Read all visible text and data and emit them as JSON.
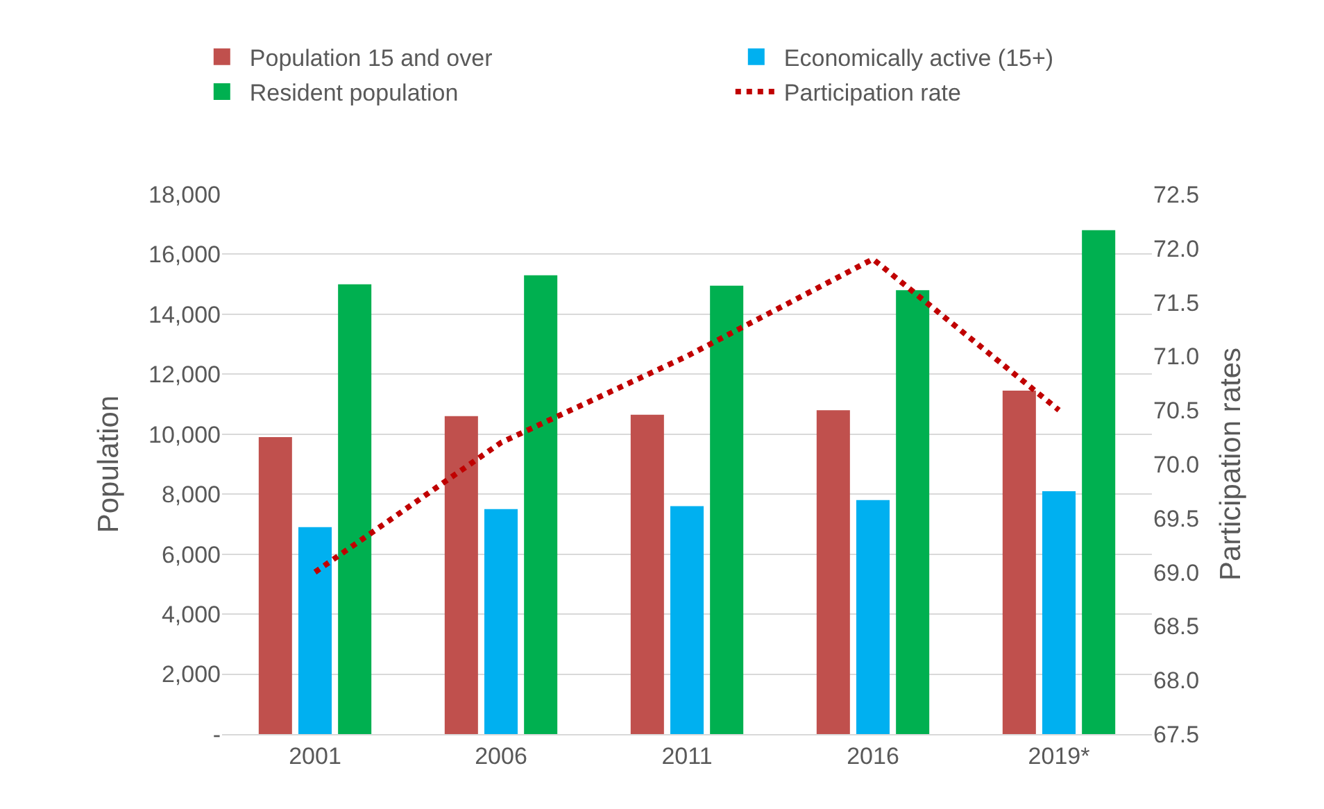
{
  "chart_data": {
    "type": "bar",
    "categories": [
      "2001",
      "2006",
      "2011",
      "2016",
      "2019*"
    ],
    "series": [
      {
        "name": "Population 15 and over",
        "color": "#c0504d",
        "values": [
          9900,
          10600,
          10650,
          10800,
          11450
        ]
      },
      {
        "name": "Economically active (15+)",
        "color": "#00b0f0",
        "values": [
          6900,
          7500,
          7600,
          7800,
          8100
        ]
      },
      {
        "name": "Resident population",
        "color": "#00b050",
        "values": [
          15000,
          15300,
          14950,
          14800,
          16800
        ]
      },
      {
        "name": "Participation rate",
        "color": "#c00000",
        "type": "line",
        "axis": "y2",
        "line_style": "dotted",
        "values": [
          69.0,
          70.2,
          71.0,
          71.9,
          70.5
        ]
      }
    ],
    "ylabel": "Population",
    "y2label": "Participation rates",
    "ylim": [
      0,
      18000
    ],
    "yticks": [
      {
        "value": 0,
        "label": "-"
      },
      {
        "value": 2000,
        "label": "2,000"
      },
      {
        "value": 4000,
        "label": "4,000"
      },
      {
        "value": 6000,
        "label": "6,000"
      },
      {
        "value": 8000,
        "label": "8,000"
      },
      {
        "value": 10000,
        "label": "10,000"
      },
      {
        "value": 12000,
        "label": "12,000"
      },
      {
        "value": 14000,
        "label": "14,000"
      },
      {
        "value": 16000,
        "label": "16,000"
      },
      {
        "value": 18000,
        "label": "18,000"
      }
    ],
    "y2lim": [
      67.5,
      72.5
    ],
    "y2ticks": [
      67.5,
      {
        "value": 68,
        "label": "68.0"
      },
      68.5,
      {
        "value": 69,
        "label": "69.0"
      },
      69.5,
      {
        "value": 70,
        "label": "70.0"
      },
      70.5,
      {
        "value": 71,
        "label": "71.0"
      },
      71.5,
      {
        "value": 72,
        "label": "72.0"
      },
      72.5
    ],
    "grid": "y",
    "legend": "top"
  }
}
